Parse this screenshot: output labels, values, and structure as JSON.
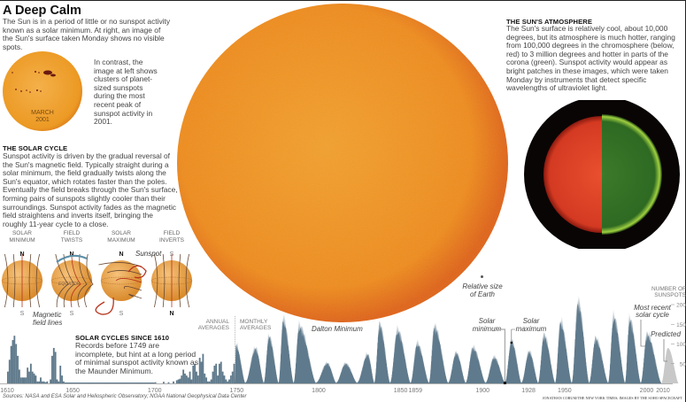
{
  "title": "A Deep Calm",
  "intro": "The Sun is in a period of little or no sunspot activity known as a solar minimum. At right, an image of the Sun's surface taken Monday shows no visible spots.",
  "march_image": {
    "label_month": "MARCH",
    "label_year": "2001"
  },
  "contrast_text": "In contrast, the image at left shows clusters of planet-sized sunspots during the most recent peak of sunspot activity in 2001.",
  "solar_cycle": {
    "heading": "THE SOLAR CYCLE",
    "body": "Sunspot activity is driven by the gradual reversal of the Sun's magnetic field. Typically straight during a solar minimum, the field gradually twists along the Sun's equator, which rotates faster than the poles. Eventually the field breaks through the Sun's surface, forming pairs of sunspots slightly cooler than their surroundings. Sunspot activity fades as the magnetic field straightens and inverts itself, bringing the roughly 11-year cycle to a close.",
    "stages": [
      {
        "label1": "SOLAR",
        "label2": "MINIMUM",
        "top": "N",
        "bottom": "S"
      },
      {
        "label1": "FIELD",
        "label2": "TWISTS",
        "top": "N",
        "bottom": "S"
      },
      {
        "label1": "SOLAR",
        "label2": "MAXIMUM",
        "top": "N",
        "bottom": "S"
      },
      {
        "label1": "FIELD",
        "label2": "INVERTS",
        "top": "S",
        "bottom": "N"
      }
    ],
    "equator_label": "EQUATOR",
    "sunspot_label": "Sunspot",
    "field_lines_label1": "Magnetic",
    "field_lines_label2": "field lines"
  },
  "atmosphere": {
    "heading": "THE SUN'S ATMOSPHERE",
    "body": "The Sun's surface is relatively cool, about 10,000 degrees, but its atmosphere is much hotter, ranging from 100,000 degrees in the chromosphere (below, red) to 3 million degrees and hotter in parts of the corona (green). Sunspot activity would appear as bright patches in these images, which were taken Monday by instruments that detect specific wavelengths of ultraviolet light."
  },
  "earth_label1": "Relative size",
  "earth_label2": "of Earth",
  "chart_text": {
    "heading": "SOLAR CYCLES SINCE 1610",
    "body": "Records before 1749 are incomplete, but hint at a long period of minimal sunspot activity known as the Maunder Minimum.",
    "annual1": "ANNUAL",
    "annual2": "AVERAGES",
    "monthly1": "MONTHLY",
    "monthly2": "AVERAGES",
    "dalton": "Dalton Minimum",
    "solar_min1": "Solar",
    "solar_min2": "minimum",
    "solar_max1": "Solar",
    "solar_max2": "maximum",
    "recent1": "Most recent",
    "recent2": "solar cycle",
    "predicted": "Predicted",
    "ylabel1": "NUMBER OF",
    "ylabel2": "SUNSPOTS"
  },
  "sources": "Sources: NASA and ESA Solar and Heliospheric Observatory; NOAA National Geophysical Data Center",
  "credit": "JONATHAN CORUM/THE NEW YORK TIMES; IMAGES BY THE SOHO SPACECRAFT",
  "colors": {
    "series": "#5f7a8c",
    "predicted": "#c8c8c8",
    "sun": "#f0921e",
    "chromosphere": "#e0402a",
    "corona": "#3f7a2c"
  },
  "chart_data": {
    "type": "area",
    "title": "SOLAR CYCLES SINCE 1610",
    "ylabel": "NUMBER OF SUNSPOTS",
    "xlim": [
      1610,
      2020
    ],
    "ylim": [
      0,
      200
    ],
    "x_ticks": [
      "1610",
      "1650",
      "1700",
      "1750",
      "1800",
      "1850",
      "1859",
      "1900",
      "1928",
      "1950",
      "2000",
      "2010"
    ],
    "y_ticks": [
      "200",
      "150",
      "100",
      "50"
    ],
    "annual_averages": [
      [
        1610,
        30
      ],
      [
        1611,
        60
      ],
      [
        1612,
        95
      ],
      [
        1613,
        110
      ],
      [
        1614,
        121
      ],
      [
        1615,
        100
      ],
      [
        1616,
        70
      ],
      [
        1617,
        35
      ],
      [
        1618,
        15
      ],
      [
        1619,
        15
      ],
      [
        1620,
        15
      ],
      [
        1621,
        15
      ],
      [
        1622,
        40
      ],
      [
        1623,
        30
      ],
      [
        1624,
        50
      ],
      [
        1625,
        30
      ],
      [
        1626,
        25
      ],
      [
        1627,
        20
      ],
      [
        1628,
        5
      ],
      [
        1629,
        5
      ],
      [
        1630,
        15
      ],
      [
        1631,
        5
      ],
      [
        1632,
        5
      ],
      [
        1633,
        3
      ],
      [
        1634,
        5
      ],
      [
        1636,
        10
      ],
      [
        1637,
        70
      ],
      [
        1638,
        90
      ],
      [
        1639,
        80
      ],
      [
        1640,
        10
      ],
      [
        1641,
        5
      ],
      [
        1642,
        45
      ],
      [
        1643,
        20
      ],
      [
        1644,
        5
      ],
      [
        1650,
        2
      ],
      [
        1660,
        1
      ],
      [
        1670,
        1
      ],
      [
        1680,
        1
      ],
      [
        1690,
        1
      ],
      [
        1700,
        3
      ],
      [
        1705,
        4
      ],
      [
        1708,
        3
      ],
      [
        1711,
        5
      ],
      [
        1713,
        8
      ],
      [
        1714,
        10
      ],
      [
        1715,
        12
      ],
      [
        1716,
        20
      ],
      [
        1717,
        35
      ],
      [
        1718,
        25
      ],
      [
        1719,
        20
      ],
      [
        1720,
        15
      ],
      [
        1721,
        30
      ],
      [
        1722,
        10
      ],
      [
        1723,
        45
      ],
      [
        1724,
        50
      ],
      [
        1725,
        30
      ],
      [
        1726,
        20
      ],
      [
        1727,
        65
      ],
      [
        1728,
        55
      ],
      [
        1729,
        75
      ],
      [
        1730,
        25
      ],
      [
        1731,
        15
      ],
      [
        1732,
        5
      ],
      [
        1733,
        5
      ],
      [
        1734,
        10
      ],
      [
        1735,
        30
      ],
      [
        1736,
        45
      ],
      [
        1737,
        50
      ],
      [
        1738,
        20
      ],
      [
        1739,
        50
      ],
      [
        1740,
        55
      ],
      [
        1741,
        30
      ],
      [
        1742,
        20
      ],
      [
        1743,
        10
      ],
      [
        1744,
        5
      ],
      [
        1745,
        10
      ],
      [
        1746,
        20
      ],
      [
        1747,
        30
      ],
      [
        1748,
        50
      ]
    ],
    "monthly_cycles": [
      {
        "start": 1749.0,
        "peak": 1749.5,
        "end": 1755.2,
        "value": 95
      },
      {
        "start": 1755.2,
        "peak": 1761.5,
        "end": 1766.5,
        "value": 86
      },
      {
        "start": 1766.5,
        "peak": 1769.7,
        "end": 1775.5,
        "value": 116
      },
      {
        "start": 1775.5,
        "peak": 1778.4,
        "end": 1784.7,
        "value": 158
      },
      {
        "start": 1784.7,
        "peak": 1788.1,
        "end": 1798.3,
        "value": 141
      },
      {
        "start": 1798.3,
        "peak": 1805.2,
        "end": 1810.6,
        "value": 49
      },
      {
        "start": 1810.6,
        "peak": 1816.4,
        "end": 1823.3,
        "value": 48
      },
      {
        "start": 1823.3,
        "peak": 1829.9,
        "end": 1833.9,
        "value": 71
      },
      {
        "start": 1833.9,
        "peak": 1837.2,
        "end": 1843.5,
        "value": 146
      },
      {
        "start": 1843.5,
        "peak": 1848.1,
        "end": 1856.0,
        "value": 131
      },
      {
        "start": 1856.0,
        "peak": 1860.1,
        "end": 1867.2,
        "value": 98
      },
      {
        "start": 1867.2,
        "peak": 1870.6,
        "end": 1878.9,
        "value": 140
      },
      {
        "start": 1878.9,
        "peak": 1883.9,
        "end": 1889.6,
        "value": 75
      },
      {
        "start": 1889.6,
        "peak": 1894.1,
        "end": 1901.7,
        "value": 88
      },
      {
        "start": 1901.7,
        "peak": 1907.0,
        "end": 1913.6,
        "value": 64
      },
      {
        "start": 1913.6,
        "peak": 1917.6,
        "end": 1923.6,
        "value": 105
      },
      {
        "start": 1923.6,
        "peak": 1928.4,
        "end": 1933.8,
        "value": 78
      },
      {
        "start": 1933.8,
        "peak": 1937.4,
        "end": 1944.2,
        "value": 119
      },
      {
        "start": 1944.2,
        "peak": 1947.5,
        "end": 1954.3,
        "value": 152
      },
      {
        "start": 1954.3,
        "peak": 1958.2,
        "end": 1964.9,
        "value": 201
      },
      {
        "start": 1964.9,
        "peak": 1968.9,
        "end": 1976.5,
        "value": 111
      },
      {
        "start": 1976.5,
        "peak": 1979.9,
        "end": 1986.8,
        "value": 165
      },
      {
        "start": 1986.8,
        "peak": 1989.6,
        "end": 1996.4,
        "value": 159
      },
      {
        "start": 1996.4,
        "peak": 2000.3,
        "end": 2008.9,
        "value": 121
      }
    ],
    "predicted_cycle": {
      "start": 2008.9,
      "peak": 2013.0,
      "end": 2019.5,
      "value": 90
    },
    "annotations": [
      "Dalton Minimum",
      "Solar minimum",
      "Solar maximum",
      "Most recent solar cycle",
      "Predicted",
      "ANNUAL AVERAGES",
      "MONTHLY AVERAGES"
    ]
  }
}
